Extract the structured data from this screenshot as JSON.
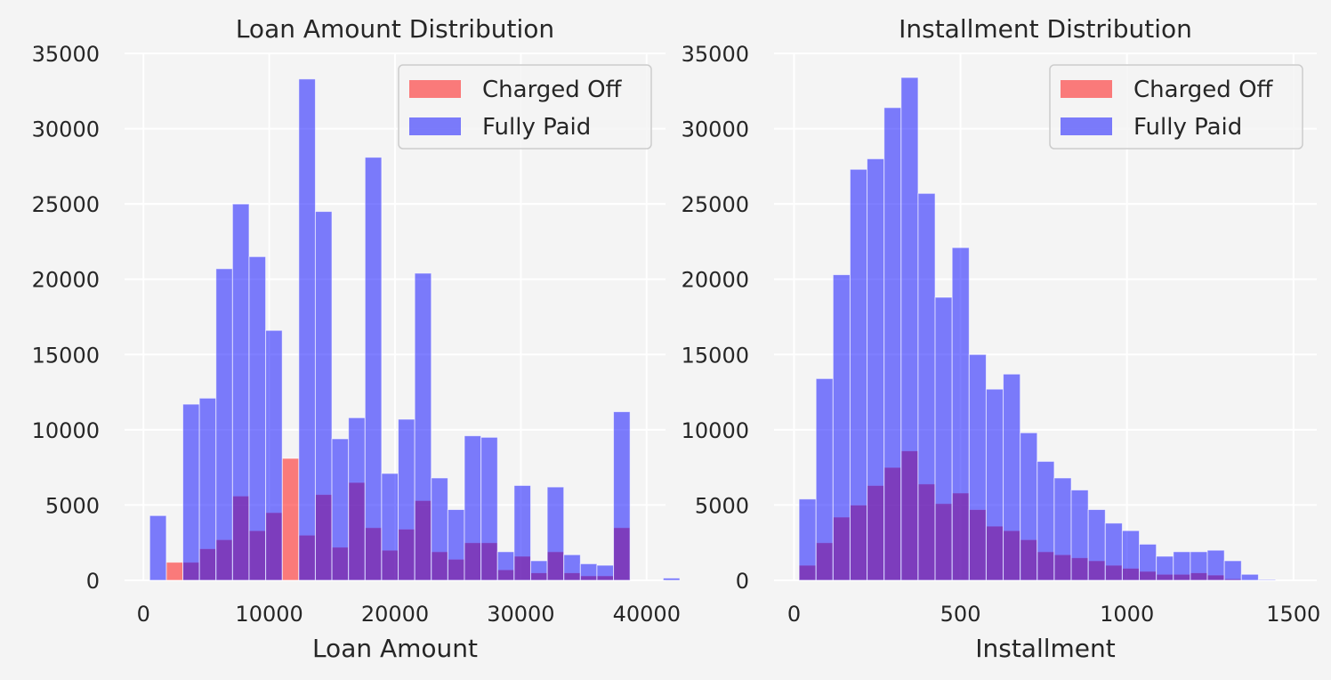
{
  "colors": {
    "background": "#f4f4f4",
    "plot_area": "#f4f4f4",
    "grid": "#ffffff",
    "charged_off": "#ff0000",
    "fully_paid": "#0000ff",
    "bar_alpha": 0.5
  },
  "chart_data": [
    {
      "type": "bar",
      "title": "Loan Amount Distribution",
      "xlabel": "Loan Amount",
      "ylabel": "",
      "xlim": [
        -1500,
        41500
      ],
      "ylim": [
        0,
        35000
      ],
      "xticks": [
        0,
        10000,
        20000,
        30000,
        40000
      ],
      "xtick_labels": [
        "0",
        "10000",
        "20000",
        "30000",
        "40000"
      ],
      "yticks": [
        0,
        5000,
        10000,
        15000,
        20000,
        25000,
        30000,
        35000
      ],
      "ytick_labels": [
        "0",
        "5000",
        "10000",
        "15000",
        "20000",
        "25000",
        "30000",
        "35000"
      ],
      "grid": true,
      "legend_position": "top-right",
      "bin_start": 500,
      "bin_width": 1316.67,
      "series": [
        {
          "name": "Charged Off",
          "color_key": "charged_off",
          "values": [
            0,
            1200,
            1200,
            2100,
            2700,
            5600,
            3300,
            4500,
            8100,
            3000,
            5700,
            2200,
            6500,
            3500,
            2000,
            3400,
            5300,
            1900,
            1400,
            2500,
            2500,
            700,
            1600,
            500,
            1900,
            500,
            300,
            300,
            3500,
            0,
            0,
            0
          ]
        },
        {
          "name": "Fully Paid",
          "color_key": "fully_paid",
          "values": [
            4300,
            0,
            11700,
            12100,
            20700,
            25000,
            21500,
            16600,
            0,
            33300,
            24500,
            9400,
            10800,
            28100,
            7100,
            10700,
            20400,
            6800,
            4700,
            9600,
            9500,
            1900,
            6300,
            1300,
            6200,
            1700,
            1100,
            1000,
            11200,
            0,
            0,
            150
          ]
        }
      ]
    },
    {
      "type": "bar",
      "title": "Installment Distribution",
      "xlabel": "Installment",
      "ylabel": "",
      "xlim": [
        -60,
        1570
      ],
      "ylim": [
        0,
        35000
      ],
      "xticks": [
        0,
        500,
        1000,
        1500
      ],
      "xtick_labels": [
        "0",
        "500",
        "1000",
        "1500"
      ],
      "yticks": [
        0,
        5000,
        10000,
        15000,
        20000,
        25000,
        30000,
        35000
      ],
      "ytick_labels": [
        "0",
        "5000",
        "10000",
        "15000",
        "20000",
        "25000",
        "30000",
        "35000"
      ],
      "grid": true,
      "legend_position": "top-right",
      "bin_start": 15,
      "bin_width": 51.1,
      "series": [
        {
          "name": "Charged Off",
          "color_key": "charged_off",
          "values": [
            1000,
            2500,
            4200,
            5000,
            6300,
            7500,
            8600,
            6400,
            5100,
            5800,
            4700,
            3600,
            3300,
            2700,
            1900,
            1700,
            1500,
            1300,
            1000,
            800,
            600,
            400,
            400,
            500,
            350,
            100,
            0,
            0,
            0,
            0
          ]
        },
        {
          "name": "Fully Paid",
          "color_key": "fully_paid",
          "values": [
            5400,
            13400,
            20300,
            27300,
            28000,
            31400,
            33400,
            25700,
            18800,
            22100,
            15000,
            12700,
            13700,
            9800,
            7900,
            6800,
            6000,
            4700,
            3800,
            3300,
            2400,
            1600,
            1900,
            1900,
            2000,
            1300,
            400,
            50,
            0,
            0
          ]
        }
      ]
    }
  ]
}
